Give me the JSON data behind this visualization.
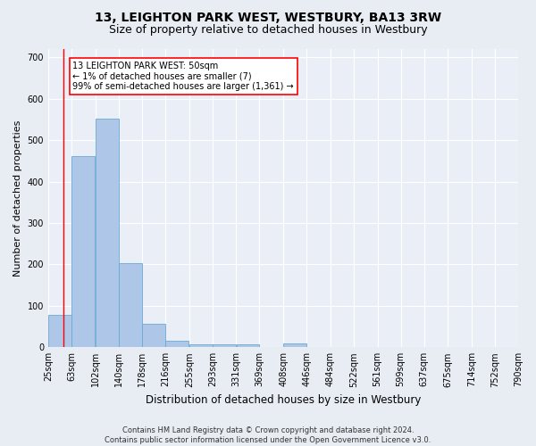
{
  "title": "13, LEIGHTON PARK WEST, WESTBURY, BA13 3RW",
  "subtitle": "Size of property relative to detached houses in Westbury",
  "xlabel": "Distribution of detached houses by size in Westbury",
  "ylabel": "Number of detached properties",
  "footer_line1": "Contains HM Land Registry data © Crown copyright and database right 2024.",
  "footer_line2": "Contains public sector information licensed under the Open Government Licence v3.0.",
  "annotation_line1": "13 LEIGHTON PARK WEST: 50sqm",
  "annotation_line2": "← 1% of detached houses are smaller (7)",
  "annotation_line3": "99% of semi-detached houses are larger (1,361) →",
  "bar_left_edges": [
    25,
    63,
    102,
    140,
    178,
    216,
    255,
    293,
    331,
    369,
    408,
    446,
    484,
    522,
    561,
    599,
    637,
    675,
    714,
    752
  ],
  "bar_heights": [
    78,
    462,
    551,
    203,
    57,
    15,
    8,
    8,
    8,
    0,
    10,
    0,
    0,
    0,
    0,
    0,
    0,
    0,
    0,
    0
  ],
  "bin_width": 38,
  "bar_color": "#aec6e8",
  "bar_edge_color": "#6aabd2",
  "tick_labels": [
    "25sqm",
    "63sqm",
    "102sqm",
    "140sqm",
    "178sqm",
    "216sqm",
    "255sqm",
    "293sqm",
    "331sqm",
    "369sqm",
    "408sqm",
    "446sqm",
    "484sqm",
    "522sqm",
    "561sqm",
    "599sqm",
    "637sqm",
    "675sqm",
    "714sqm",
    "752sqm",
    "790sqm"
  ],
  "ylim": [
    0,
    720
  ],
  "xlim": [
    25,
    790
  ],
  "yticks": [
    0,
    100,
    200,
    300,
    400,
    500,
    600,
    700
  ],
  "red_line_x": 50,
  "bg_color": "#e8edf4",
  "plot_bg_color": "#eaeff7",
  "grid_color": "#ffffff",
  "title_fontsize": 10,
  "subtitle_fontsize": 9,
  "axis_label_fontsize": 8,
  "tick_fontsize": 7
}
